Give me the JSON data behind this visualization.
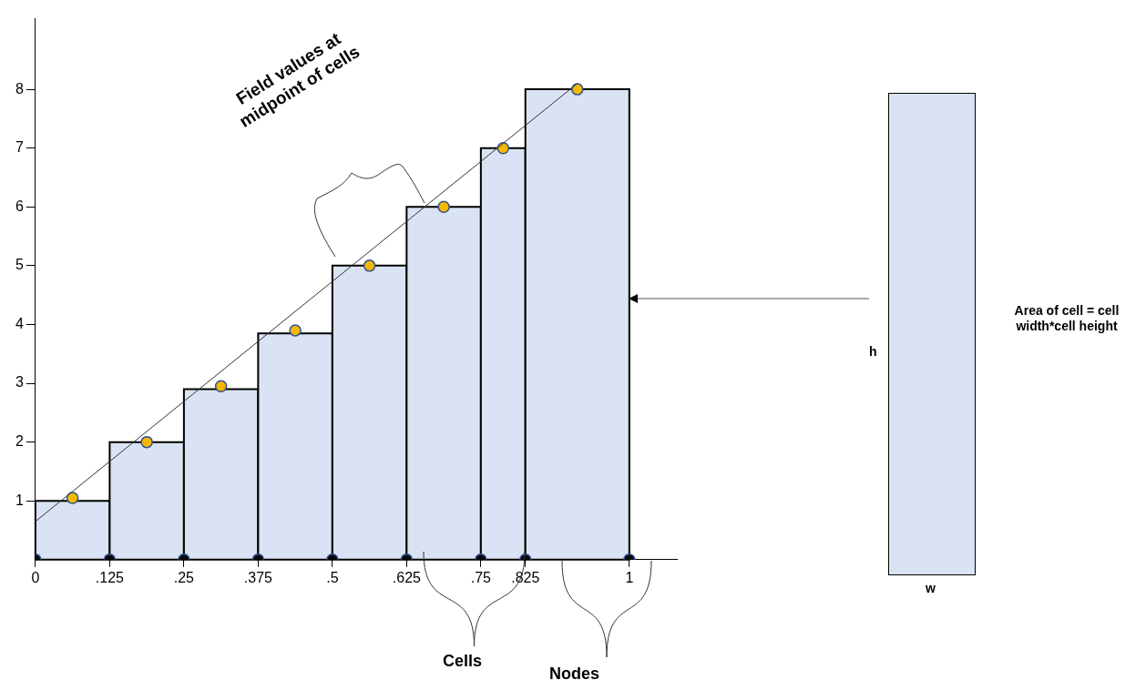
{
  "chart_data": {
    "type": "histogram",
    "color": "#dae3f3",
    "bins": [
      0,
      0.125,
      0.25,
      0.375,
      0.5,
      0.625,
      0.75,
      0.825,
      1
    ],
    "values": [
      1,
      2,
      2.9,
      3.85,
      5,
      6,
      7,
      8
    ],
    "series": [
      {
        "type": "line",
        "color": "#333333",
        "marker": "none",
        "x": [
          0,
          0.9125
        ],
        "values": [
          0.65,
          8.1
        ]
      },
      {
        "type": "scatter",
        "color": "#f5b800",
        "marker": "circle",
        "x": [
          0.0625,
          0.1875,
          0.3125,
          0.4375,
          0.5625,
          0.6875,
          0.7875,
          0.9125
        ],
        "values": [
          1.05,
          2,
          2.95,
          3.9,
          5,
          6,
          7,
          8
        ]
      },
      {
        "type": "scatter",
        "color": "#0a0a0a",
        "marker": "circle",
        "x": [
          0,
          0.125,
          0.25,
          0.375,
          0.5,
          0.625,
          0.75,
          0.825,
          1
        ],
        "values": [
          0,
          0,
          0,
          0,
          0,
          0,
          0,
          0,
          0
        ]
      }
    ],
    "xlim": [
      0,
      1.08
    ],
    "ylim": [
      0,
      9.2
    ],
    "xticks": [
      0,
      {
        "value": 0.125,
        "label": ".125"
      },
      {
        "value": 0.25,
        "label": ".25"
      },
      {
        "value": 0.375,
        "label": ".375"
      },
      {
        "value": 0.5,
        "label": ".5"
      },
      {
        "value": 0.625,
        "label": ".625"
      },
      {
        "value": 0.75,
        "label": ".75"
      },
      {
        "value": 0.825,
        "label": ".825"
      },
      1
    ],
    "yticks": [
      1,
      2,
      3,
      4,
      5,
      6,
      7,
      8
    ],
    "grid": false,
    "legend": false,
    "annotations": [
      "Field values at midpoint of cells",
      "Cells",
      "Nodes",
      "Area of cell = cell width*cell height",
      "h",
      "w"
    ]
  }
}
